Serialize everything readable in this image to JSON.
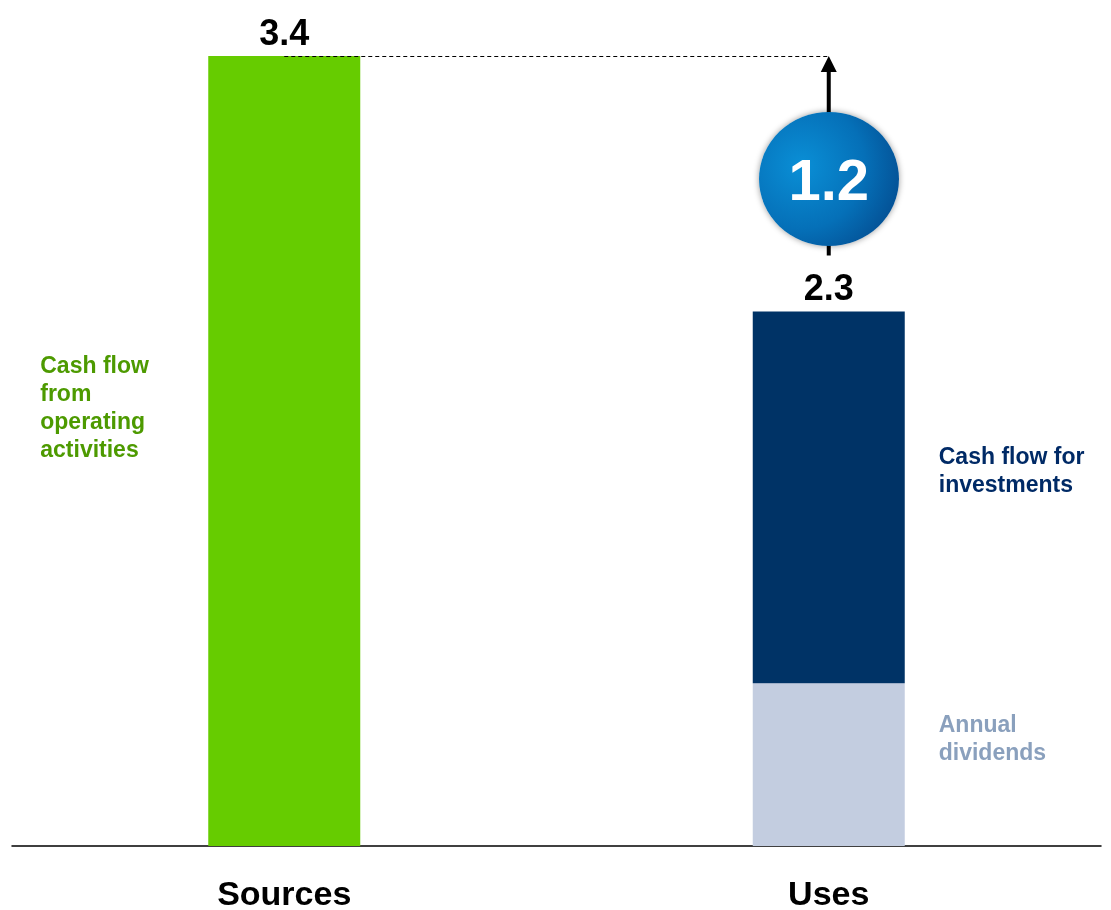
{
  "chart_data": {
    "type": "bar",
    "stacked": true,
    "categories": [
      "Sources",
      "Uses"
    ],
    "series": [
      {
        "name": "Cash flow from operating activities",
        "color": "#66cc00",
        "values": [
          3.4,
          null
        ],
        "value_labels": [
          "3.4",
          null
        ]
      },
      {
        "name": "Annual dividends",
        "color": "#c3cde0",
        "values": [
          null,
          0.7
        ]
      },
      {
        "name": "Cash flow for investments",
        "color": "#003366",
        "values": [
          null,
          1.6
        ]
      }
    ],
    "totals": [
      null,
      "2.3"
    ],
    "ref_lines": [
      {
        "axis": "y",
        "value": 3.4,
        "color": "#000000",
        "line_style": "dashed"
      }
    ],
    "annotations": [
      "1.2"
    ],
    "legend": false
  }
}
